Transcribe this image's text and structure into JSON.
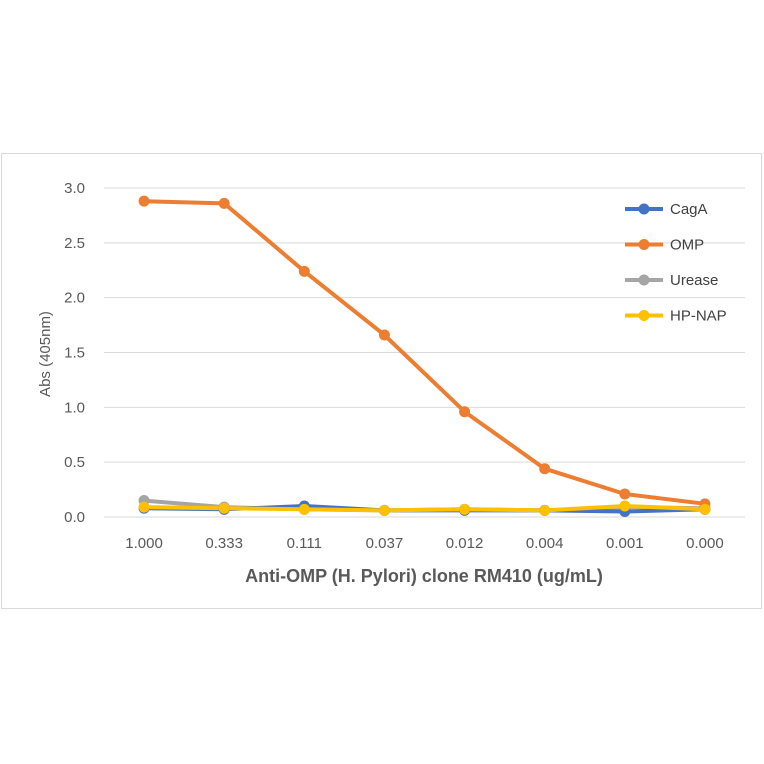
{
  "chart_data": {
    "type": "line",
    "title": "",
    "xlabel": "Anti-OMP (H. Pylori) clone RM410 (ug/mL)",
    "ylabel": "Abs (405nm)",
    "categories": [
      "1.000",
      "0.333",
      "0.111",
      "0.037",
      "0.012",
      "0.004",
      "0.001",
      "0.000"
    ],
    "ylim": [
      0,
      3.0
    ],
    "yticks": [
      "0.0",
      "0.5",
      "1.0",
      "1.5",
      "2.0",
      "2.5",
      "3.0"
    ],
    "grid": true,
    "legend_position": "right",
    "series": [
      {
        "name": "CagA",
        "color": "#4472C4",
        "values": [
          0.08,
          0.07,
          0.1,
          0.06,
          0.06,
          0.06,
          0.05,
          0.07
        ]
      },
      {
        "name": "OMP",
        "color": "#ED7D31",
        "values": [
          2.88,
          2.86,
          2.24,
          1.66,
          0.96,
          0.44,
          0.21,
          0.12
        ]
      },
      {
        "name": "Urease",
        "color": "#A5A5A5",
        "values": [
          0.15,
          0.09,
          0.07,
          0.06,
          0.07,
          0.06,
          0.09,
          0.08
        ]
      },
      {
        "name": "HP-NAP",
        "color": "#FFC000",
        "values": [
          0.09,
          0.08,
          0.07,
          0.06,
          0.07,
          0.06,
          0.1,
          0.07
        ]
      }
    ]
  }
}
